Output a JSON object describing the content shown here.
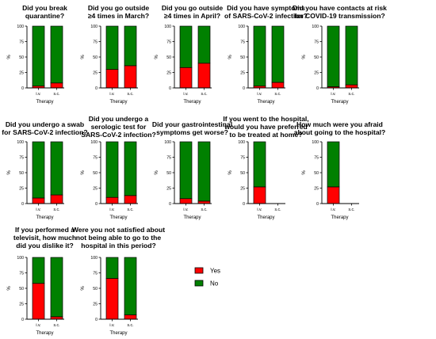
{
  "colors": {
    "yes": "#ff0000",
    "no": "#008000",
    "axis": "#000000"
  },
  "legend": {
    "items": [
      {
        "label": "Yes",
        "color": "#ff0000"
      },
      {
        "label": "No",
        "color": "#008000"
      }
    ],
    "placement": "bottom-center"
  },
  "chart_data": [
    {
      "type": "bar",
      "stacked": true,
      "title": [
        "Did you break",
        "quarantine?"
      ],
      "ylabel": "%",
      "xlabel": "Therapy",
      "categories": [
        "i.v.",
        "s.c."
      ],
      "ylim": [
        0,
        100
      ],
      "yticks": [
        0,
        25,
        50,
        75,
        100
      ],
      "series": [
        {
          "name": "Yes",
          "values": [
            3,
            8
          ]
        },
        {
          "name": "No",
          "values": [
            97,
            92
          ]
        }
      ]
    },
    {
      "type": "bar",
      "stacked": true,
      "title": [
        "Did you go outside",
        "≥4 times in March?"
      ],
      "ylabel": "%",
      "xlabel": "Therapy",
      "categories": [
        "i.v.",
        "s.c."
      ],
      "ylim": [
        0,
        100
      ],
      "yticks": [
        0,
        25,
        50,
        75,
        100
      ],
      "series": [
        {
          "name": "Yes",
          "values": [
            30,
            36
          ]
        },
        {
          "name": "No",
          "values": [
            70,
            64
          ]
        }
      ]
    },
    {
      "type": "bar",
      "stacked": true,
      "title": [
        "Did you go outside",
        "≥4 times in April?"
      ],
      "ylabel": "%",
      "xlabel": "Therapy",
      "categories": [
        "i.v.",
        "s.c."
      ],
      "ylim": [
        0,
        100
      ],
      "yticks": [
        0,
        25,
        50,
        75,
        100
      ],
      "series": [
        {
          "name": "Yes",
          "values": [
            33,
            40
          ]
        },
        {
          "name": "No",
          "values": [
            67,
            60
          ]
        }
      ]
    },
    {
      "type": "bar",
      "stacked": true,
      "title": [
        "Did you have symptoms",
        "of SARS-CoV-2 infection?"
      ],
      "ylabel": "%",
      "xlabel": "Therapy",
      "categories": [
        "i.v.",
        "s.c."
      ],
      "ylim": [
        0,
        100
      ],
      "yticks": [
        0,
        25,
        50,
        75,
        100
      ],
      "series": [
        {
          "name": "Yes",
          "values": [
            3,
            9
          ]
        },
        {
          "name": "No",
          "values": [
            97,
            91
          ]
        }
      ]
    },
    {
      "type": "bar",
      "stacked": true,
      "title": [
        "Did you have contacts at risk",
        "for COVID-19 transmission?"
      ],
      "ylabel": "%",
      "xlabel": "Therapy",
      "categories": [
        "i.v.",
        "s.c."
      ],
      "ylim": [
        0,
        100
      ],
      "yticks": [
        0,
        25,
        50,
        75,
        100
      ],
      "series": [
        {
          "name": "Yes",
          "values": [
            2,
            5
          ]
        },
        {
          "name": "No",
          "values": [
            98,
            95
          ]
        }
      ]
    },
    {
      "type": "bar",
      "stacked": true,
      "title": [
        "Did you undergo a swab",
        "for SARS-CoV-2 infection?"
      ],
      "ylabel": "%",
      "xlabel": "Therapy",
      "categories": [
        "i.v.",
        "s.c."
      ],
      "ylim": [
        0,
        100
      ],
      "yticks": [
        0,
        25,
        50,
        75,
        100
      ],
      "series": [
        {
          "name": "Yes",
          "values": [
            9,
            14
          ]
        },
        {
          "name": "No",
          "values": [
            91,
            86
          ]
        }
      ]
    },
    {
      "type": "bar",
      "stacked": true,
      "title": [
        "Did you undergo a",
        "serologic test for",
        "SARS-CoV-2 infection?"
      ],
      "ylabel": "%",
      "xlabel": "Therapy",
      "categories": [
        "i.v.",
        "s.c."
      ],
      "ylim": [
        0,
        100
      ],
      "yticks": [
        0,
        25,
        50,
        75,
        100
      ],
      "series": [
        {
          "name": "Yes",
          "values": [
            10,
            13
          ]
        },
        {
          "name": "No",
          "values": [
            90,
            87
          ]
        }
      ]
    },
    {
      "type": "bar",
      "stacked": true,
      "title": [
        "Did your gastrointestinal",
        "symptoms get worse?"
      ],
      "ylabel": "%",
      "xlabel": "Therapy",
      "categories": [
        "i.v.",
        "s.c."
      ],
      "ylim": [
        0,
        100
      ],
      "yticks": [
        0,
        25,
        50,
        75,
        100
      ],
      "series": [
        {
          "name": "Yes",
          "values": [
            8,
            4
          ]
        },
        {
          "name": "No",
          "values": [
            92,
            96
          ]
        }
      ]
    },
    {
      "type": "bar",
      "stacked": true,
      "title": [
        "If you went to the hospital,",
        "would you have preferred",
        "to be treated at home?"
      ],
      "ylabel": "%",
      "xlabel": "Therapy",
      "categories": [
        "i.v.",
        "s.c."
      ],
      "ylim": [
        0,
        100
      ],
      "yticks": [
        0,
        25,
        50,
        75,
        100
      ],
      "series": [
        {
          "name": "Yes",
          "values": [
            27,
            0
          ]
        },
        {
          "name": "No",
          "values": [
            73,
            0
          ]
        }
      ]
    },
    {
      "type": "bar",
      "stacked": true,
      "title": [
        "How much were you afraid",
        "about going to the hospital?"
      ],
      "ylabel": "%",
      "xlabel": "Therapy",
      "categories": [
        "i.v.",
        "s.c."
      ],
      "ylim": [
        0,
        100
      ],
      "yticks": [
        0,
        25,
        50,
        75,
        100
      ],
      "series": [
        {
          "name": "Yes",
          "values": [
            27,
            0
          ]
        },
        {
          "name": "No",
          "values": [
            73,
            0
          ]
        }
      ]
    },
    {
      "type": "bar",
      "stacked": true,
      "title": [
        "If you performed a",
        "televisit, how much",
        "did you dislike it?"
      ],
      "ylabel": "%",
      "xlabel": "Therapy",
      "categories": [
        "i.v.",
        "s.c."
      ],
      "ylim": [
        0,
        100
      ],
      "yticks": [
        0,
        25,
        50,
        75,
        100
      ],
      "series": [
        {
          "name": "Yes",
          "values": [
            58,
            4
          ]
        },
        {
          "name": "No",
          "values": [
            42,
            96
          ]
        }
      ]
    },
    {
      "type": "bar",
      "stacked": true,
      "title": [
        "Were you not satisfied about",
        "not being able to go to the",
        "hospital in this period?"
      ],
      "ylabel": "%",
      "xlabel": "Therapy",
      "categories": [
        "i.v.",
        "s.c."
      ],
      "ylim": [
        0,
        100
      ],
      "yticks": [
        0,
        25,
        50,
        75,
        100
      ],
      "series": [
        {
          "name": "Yes",
          "values": [
            66,
            7
          ]
        },
        {
          "name": "No",
          "values": [
            34,
            93
          ]
        }
      ]
    }
  ]
}
